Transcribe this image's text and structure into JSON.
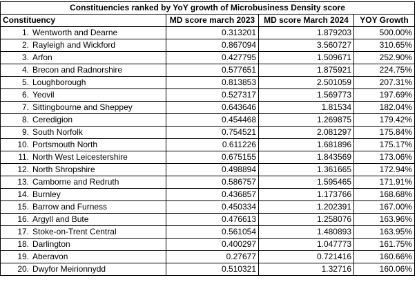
{
  "title": "Constituencies ranked by YoY growth of Microbusiness Density score",
  "headers": [
    "Constituency",
    "MD score march 2023",
    "MD score March 2024",
    "YOY Growth"
  ],
  "rows": [
    {
      "rank": "1.",
      "name": "Wentworth and Dearne",
      "md2023": "0.313201",
      "md2024": "1.879203",
      "growth": "500.00%"
    },
    {
      "rank": "2.",
      "name": "Rayleigh and Wickford",
      "md2023": "0.867094",
      "md2024": "3.560727",
      "growth": "310.65%"
    },
    {
      "rank": "3.",
      "name": "Arfon",
      "md2023": "0.427795",
      "md2024": "1.509671",
      "growth": "252.90%"
    },
    {
      "rank": "4.",
      "name": "Brecon and Radnorshire",
      "md2023": "0.577651",
      "md2024": "1.875921",
      "growth": "224.75%"
    },
    {
      "rank": "5.",
      "name": "Loughborough",
      "md2023": "0.813853",
      "md2024": "2.501059",
      "growth": "207.31%"
    },
    {
      "rank": "6.",
      "name": "Yeovil",
      "md2023": "0.527317",
      "md2024": "1.569773",
      "growth": "197.69%"
    },
    {
      "rank": "7.",
      "name": "Sittingbourne and Sheppey",
      "md2023": "0.643646",
      "md2024": "1.81534",
      "growth": "182.04%"
    },
    {
      "rank": "8.",
      "name": "Ceredigion",
      "md2023": "0.454468",
      "md2024": "1.269875",
      "growth": "179.42%"
    },
    {
      "rank": "9.",
      "name": "South Norfolk",
      "md2023": "0.754521",
      "md2024": "2.081297",
      "growth": "175.84%"
    },
    {
      "rank": "10.",
      "name": "Portsmouth North",
      "md2023": "0.611226",
      "md2024": "1.681896",
      "growth": "175.17%"
    },
    {
      "rank": "11.",
      "name": "North West Leicestershire",
      "md2023": "0.675155",
      "md2024": "1.843569",
      "growth": "173.06%"
    },
    {
      "rank": "12.",
      "name": "North Shropshire",
      "md2023": "0.498894",
      "md2024": "1.361665",
      "growth": "172.94%"
    },
    {
      "rank": "13.",
      "name": "Camborne and Redruth",
      "md2023": "0.586757",
      "md2024": "1.595465",
      "growth": "171.91%"
    },
    {
      "rank": "14.",
      "name": "Burnley",
      "md2023": "0.436857",
      "md2024": "1.173766",
      "growth": "168.68%"
    },
    {
      "rank": "15.",
      "name": "Barrow and Furness",
      "md2023": "0.450334",
      "md2024": "1.202391",
      "growth": "167.00%"
    },
    {
      "rank": "16.",
      "name": "Argyll and Bute",
      "md2023": "0.476613",
      "md2024": "1.258076",
      "growth": "163.96%"
    },
    {
      "rank": "17.",
      "name": "Stoke-on-Trent Central",
      "md2023": "0.561054",
      "md2024": "1.480893",
      "growth": "163.95%"
    },
    {
      "rank": "18.",
      "name": "Darlington",
      "md2023": "0.400297",
      "md2024": "1.047773",
      "growth": "161.75%"
    },
    {
      "rank": "19.",
      "name": "Aberavon",
      "md2023": "0.27677",
      "md2024": "0.721416",
      "growth": "160.66%"
    },
    {
      "rank": "20.",
      "name": "Dwyfor Meirionnydd",
      "md2023": "0.510321",
      "md2024": "1.32716",
      "growth": "160.06%"
    }
  ]
}
